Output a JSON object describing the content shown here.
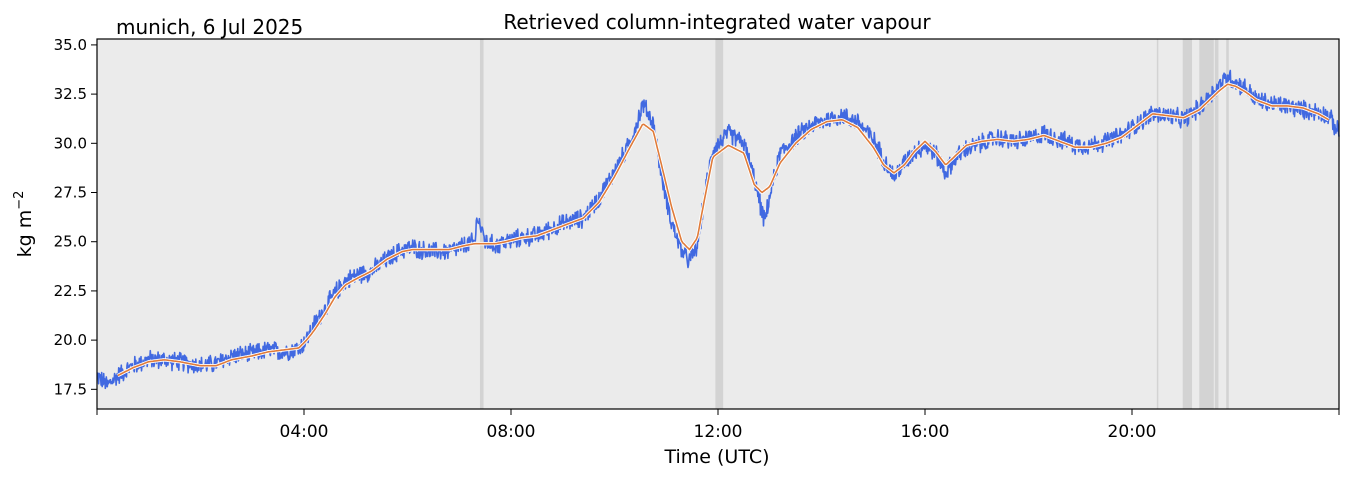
{
  "header": {
    "location_date": "munich, 6 Jul 2025",
    "title": "Retrieved column-integrated water vapour"
  },
  "colors": {
    "plot_background": "#ebebeb",
    "raw_series": "#4169e1",
    "smoothed_series": "#e07b39",
    "gap_shading": "#d3d3d3"
  },
  "chart_data": {
    "type": "line",
    "title": "Retrieved column-integrated water vapour",
    "xlabel": "Time (UTC)",
    "ylabel": "kg m",
    "ylabel_exponent": "−2",
    "xlim_hours": [
      0,
      24
    ],
    "ylim": [
      16.5,
      35.3
    ],
    "x_ticks": [
      {
        "hour": 4,
        "label": "04:00"
      },
      {
        "hour": 8,
        "label": "08:00"
      },
      {
        "hour": 12,
        "label": "12:00"
      },
      {
        "hour": 16,
        "label": "16:00"
      },
      {
        "hour": 20,
        "label": "20:00"
      }
    ],
    "y_ticks": [
      {
        "value": 17.5,
        "label": "17.5"
      },
      {
        "value": 20.0,
        "label": "20.0"
      },
      {
        "value": 22.5,
        "label": "22.5"
      },
      {
        "value": 25.0,
        "label": "25.0"
      },
      {
        "value": 27.5,
        "label": "27.5"
      },
      {
        "value": 30.0,
        "label": "30.0"
      },
      {
        "value": 32.5,
        "label": "32.5"
      },
      {
        "value": 35.0,
        "label": "35.0"
      }
    ],
    "gap_intervals_hours": [
      [
        7.4,
        7.47
      ],
      [
        11.95,
        12.1
      ],
      [
        20.48,
        20.5
      ],
      [
        20.98,
        21.16
      ],
      [
        21.3,
        21.58
      ],
      [
        21.6,
        21.67
      ],
      [
        21.82,
        21.87
      ]
    ],
    "series": [
      {
        "name": "raw",
        "noise_amplitude": 0.55,
        "x": [
          0.0,
          0.2,
          0.4,
          0.7,
          1.0,
          1.3,
          1.6,
          2.0,
          2.3,
          2.6,
          3.0,
          3.3,
          3.6,
          3.9,
          4.05,
          4.2,
          4.4,
          4.6,
          4.8,
          5.0,
          5.3,
          5.6,
          5.9,
          6.1,
          6.4,
          6.8,
          7.1,
          7.3,
          7.35,
          7.5,
          7.7,
          7.9,
          8.2,
          8.5,
          8.8,
          9.1,
          9.4,
          9.7,
          10.0,
          10.3,
          10.55,
          10.75,
          10.9,
          11.1,
          11.3,
          11.45,
          11.6,
          11.75,
          11.9,
          12.2,
          12.5,
          12.7,
          12.85,
          12.9,
          13.0,
          13.2,
          13.5,
          13.8,
          14.1,
          14.4,
          14.7,
          15.0,
          15.2,
          15.4,
          15.6,
          15.8,
          16.0,
          16.2,
          16.4,
          16.6,
          16.8,
          17.1,
          17.4,
          17.7,
          18.0,
          18.3,
          18.6,
          18.9,
          19.2,
          19.5,
          19.8,
          20.1,
          20.4,
          20.7,
          21.0,
          21.3,
          21.5,
          21.7,
          21.85,
          22.0,
          22.2,
          22.4,
          22.7,
          23.0,
          23.3,
          23.6,
          23.8,
          24.0
        ],
        "values": [
          18.2,
          17.7,
          18.2,
          18.7,
          19.0,
          19.0,
          18.9,
          18.7,
          18.8,
          19.2,
          19.3,
          19.5,
          19.4,
          19.6,
          20.0,
          20.8,
          21.6,
          22.4,
          23.0,
          23.3,
          23.5,
          24.1,
          24.6,
          24.7,
          24.5,
          24.5,
          24.8,
          25.0,
          26.3,
          25.0,
          24.8,
          25.0,
          25.2,
          25.3,
          25.7,
          26.0,
          26.2,
          27.2,
          28.6,
          30.0,
          32.0,
          31.0,
          28.5,
          26.0,
          24.5,
          24.0,
          24.8,
          27.5,
          29.7,
          30.5,
          30.0,
          28.2,
          26.5,
          26.0,
          27.3,
          29.5,
          30.3,
          30.9,
          31.2,
          31.4,
          31.1,
          30.2,
          29.2,
          28.3,
          29.0,
          29.6,
          29.9,
          29.5,
          28.5,
          29.3,
          29.7,
          30.0,
          30.3,
          30.1,
          30.2,
          30.5,
          30.2,
          29.9,
          29.9,
          30.1,
          30.4,
          31.0,
          31.5,
          31.4,
          31.2,
          31.8,
          32.4,
          33.0,
          33.4,
          33.1,
          32.8,
          32.2,
          32.0,
          31.9,
          31.7,
          31.6,
          31.4,
          30.5
        ]
      },
      {
        "name": "smoothed",
        "x": [
          0.4,
          0.7,
          1.0,
          1.3,
          1.6,
          2.0,
          2.3,
          2.6,
          3.0,
          3.3,
          3.6,
          3.9,
          4.05,
          4.2,
          4.4,
          4.6,
          4.8,
          5.0,
          5.3,
          5.6,
          5.9,
          6.1,
          6.4,
          6.8,
          7.1,
          7.3,
          7.5,
          7.7,
          7.9,
          8.2,
          8.5,
          8.8,
          9.1,
          9.4,
          9.7,
          10.0,
          10.3,
          10.55,
          10.75,
          10.9,
          11.1,
          11.3,
          11.45,
          11.6,
          11.75,
          11.9,
          12.2,
          12.5,
          12.7,
          12.85,
          13.0,
          13.2,
          13.5,
          13.8,
          14.1,
          14.4,
          14.7,
          15.0,
          15.2,
          15.4,
          15.6,
          15.8,
          16.0,
          16.2,
          16.4,
          16.6,
          16.8,
          17.1,
          17.4,
          17.7,
          18.0,
          18.3,
          18.6,
          18.9,
          19.2,
          19.5,
          19.8,
          20.1,
          20.4,
          20.7,
          21.0,
          21.3,
          21.5,
          21.7,
          21.85,
          22.0,
          22.2,
          22.4,
          22.7,
          23.0,
          23.3,
          23.6,
          23.8
        ],
        "values": [
          18.2,
          18.6,
          18.9,
          19.0,
          18.9,
          18.7,
          18.7,
          19.0,
          19.2,
          19.4,
          19.5,
          19.6,
          20.0,
          20.5,
          21.3,
          22.2,
          22.8,
          23.1,
          23.5,
          24.1,
          24.5,
          24.6,
          24.6,
          24.6,
          24.8,
          24.9,
          24.9,
          24.9,
          25.0,
          25.2,
          25.3,
          25.6,
          25.9,
          26.2,
          27.0,
          28.3,
          29.8,
          31.0,
          30.6,
          29.0,
          26.8,
          25.0,
          24.6,
          25.2,
          27.3,
          29.3,
          29.9,
          29.5,
          27.9,
          27.5,
          27.8,
          29.0,
          30.0,
          30.7,
          31.1,
          31.2,
          30.8,
          29.8,
          28.9,
          28.5,
          28.9,
          29.6,
          30.1,
          29.6,
          28.9,
          29.4,
          29.9,
          30.1,
          30.2,
          30.1,
          30.2,
          30.4,
          30.1,
          29.8,
          29.8,
          30.0,
          30.3,
          30.9,
          31.5,
          31.4,
          31.3,
          31.7,
          32.2,
          32.7,
          33.0,
          32.9,
          32.6,
          32.2,
          31.9,
          31.9,
          31.8,
          31.5,
          31.2
        ]
      }
    ]
  }
}
